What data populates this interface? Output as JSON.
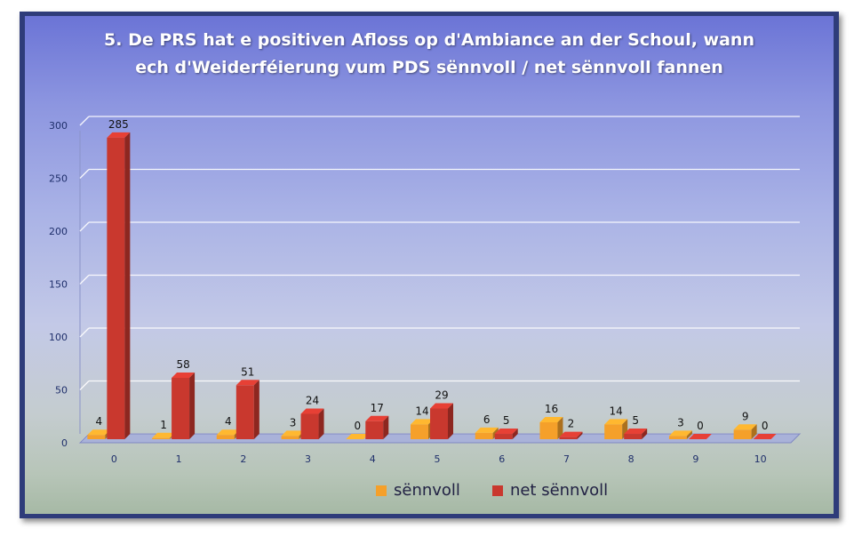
{
  "title_line1": "5. De PRS hat e positiven Afloss op d'Ambiance an der Schoul, wann",
  "title_line2": "ech d'Weiderféierung vum PDS sënnvoll / net sënnvoll fannen",
  "colors": {
    "series1": "#f5a02a",
    "series2": "#c9382e",
    "axis_text": "#1f2f6b",
    "grid": "#ffffff"
  },
  "chart_data": {
    "type": "bar",
    "title": "5. De PRS hat e positiven Afloss op d'Ambiance an der Schoul, wann ech d'Weiderféierung vum PDS sënnvoll / net sënnvoll fannen",
    "categories": [
      "0",
      "1",
      "2",
      "3",
      "4",
      "5",
      "6",
      "7",
      "8",
      "9",
      "10"
    ],
    "series": [
      {
        "name": "sënnvoll",
        "values": [
          4,
          1,
          4,
          3,
          0,
          14,
          6,
          16,
          14,
          3,
          9
        ]
      },
      {
        "name": "net sënnvoll",
        "values": [
          285,
          58,
          51,
          24,
          17,
          29,
          5,
          2,
          5,
          0,
          0
        ]
      }
    ],
    "ylim": [
      0,
      300
    ],
    "yticks": [
      0,
      50,
      100,
      150,
      200,
      250,
      300
    ],
    "grid": true,
    "legend_position": "bottom",
    "style": "3d-clustered-column"
  }
}
